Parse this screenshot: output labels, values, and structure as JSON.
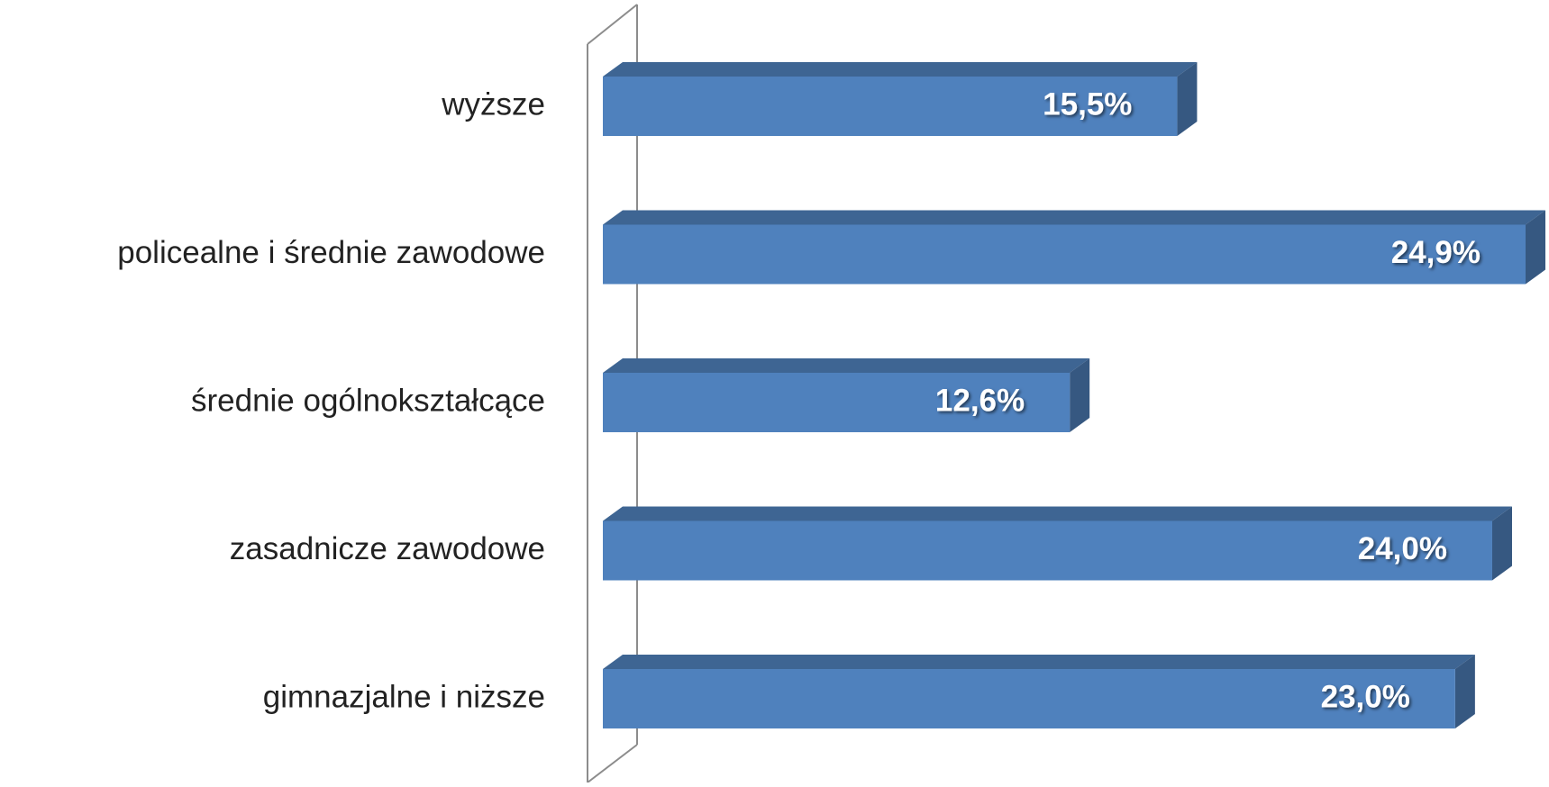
{
  "chart_data": {
    "type": "bar",
    "orientation": "horizontal",
    "three_d": true,
    "categories": [
      "wyższe",
      "policealne i średnie zawodowe",
      "średnie ogólnokształcące",
      "zasadnicze zawodowe",
      "gimnazjalne i niższe"
    ],
    "values": [
      15.5,
      24.9,
      12.6,
      24.0,
      23.0
    ],
    "value_labels": [
      "15,5%",
      "24,9%",
      "12,6%",
      "24,0%",
      "23,0%"
    ],
    "color": "#4f81bd"
  }
}
